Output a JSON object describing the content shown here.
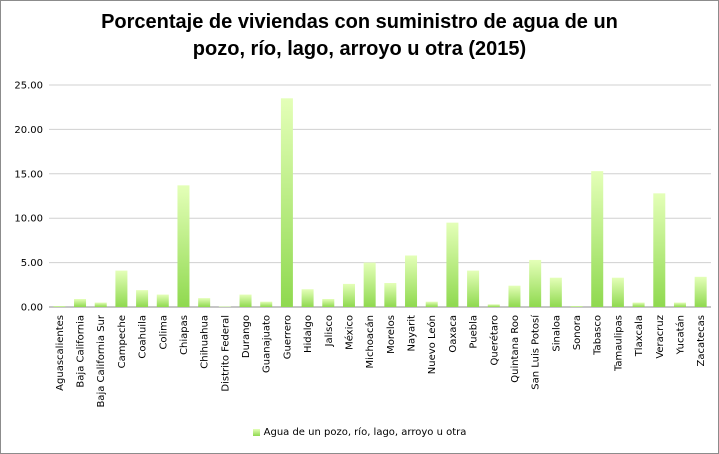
{
  "chart_data": {
    "type": "bar",
    "title": "Porcentaje de viviendas con suministro de agua de un pozo, río, lago, arroyo u otra (2015)",
    "title_lines": [
      "Porcentaje de viviendas con suministro de agua de un",
      "pozo, río, lago, arroyo u otra (2015)"
    ],
    "xlabel": "",
    "ylabel": "",
    "ylim": [
      0,
      25
    ],
    "yticks": [
      "0.00",
      "5.00",
      "10.00",
      "15.00",
      "20.00",
      "25.00"
    ],
    "grid": true,
    "legend_position": "bottom",
    "bar_color": "#a6e86a",
    "categories": [
      "Aguascalientes",
      "Baja California",
      "Baja California Sur",
      "Campeche",
      "Coahuila",
      "Colima",
      "Chiapas",
      "Chihuahua",
      "Distrito Federal",
      "Durango",
      "Guanajuato",
      "Guerrero",
      "Hidalgo",
      "Jalisco",
      "México",
      "Michoacán",
      "Morelos",
      "Nayarit",
      "Nuevo León",
      "Oaxaca",
      "Puebla",
      "Querétaro",
      "Quintana Roo",
      "San Luis Potosí",
      "Sinaloa",
      "Sonora",
      "Tabasco",
      "Tamaulipas",
      "Tlaxcala",
      "Veracruz",
      "Yucatán",
      "Zacatecas"
    ],
    "series": [
      {
        "name": "Agua de un pozo, río, lago, arroyo u otra",
        "values": [
          0.1,
          0.9,
          0.5,
          4.1,
          1.9,
          1.4,
          13.7,
          1.0,
          0.05,
          1.4,
          0.6,
          23.5,
          2.0,
          0.9,
          2.6,
          5.0,
          2.7,
          5.8,
          0.6,
          9.5,
          4.1,
          0.3,
          2.4,
          5.3,
          3.3,
          0.1,
          15.3,
          3.3,
          0.5,
          12.8,
          0.5,
          3.4
        ]
      }
    ]
  }
}
